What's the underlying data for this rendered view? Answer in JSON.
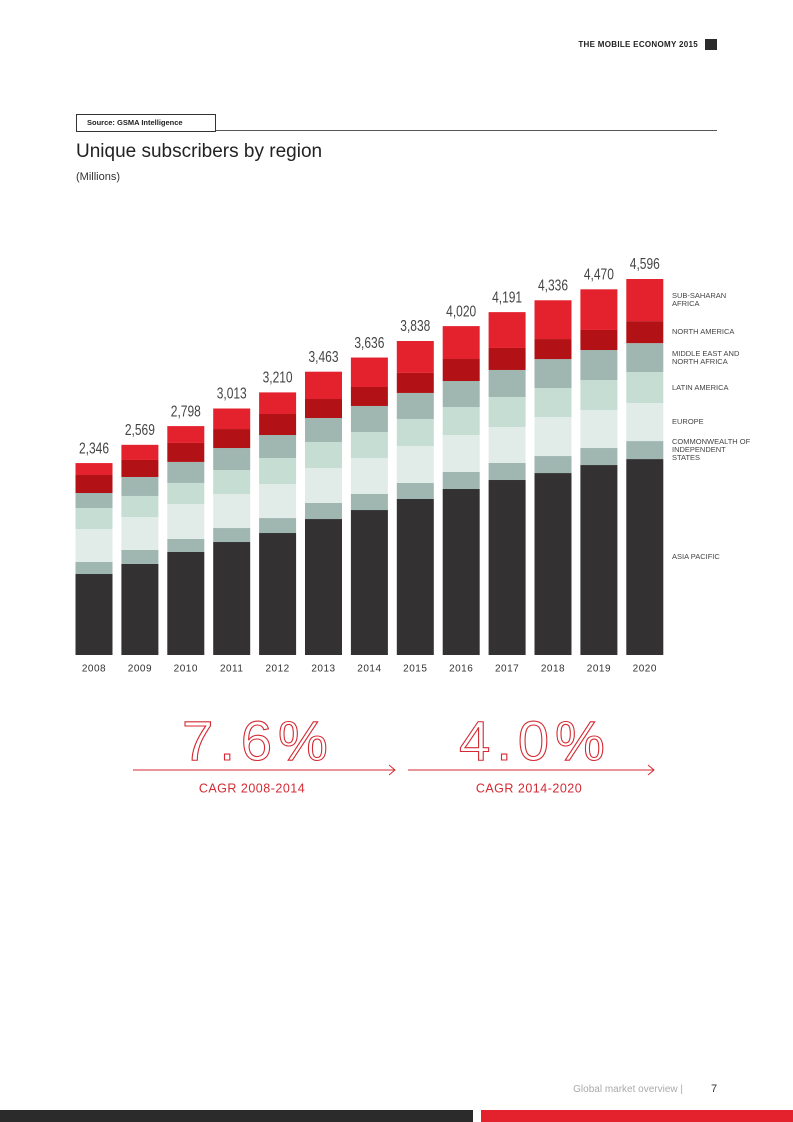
{
  "header": {
    "title": "THE MOBILE ECONOMY 2015"
  },
  "source": "Source: GSMA Intelligence",
  "chart_data": {
    "type": "bar",
    "stacked": true,
    "title": "Unique subscribers by region",
    "subtitle": "(Millions)",
    "categories": [
      "2008",
      "2009",
      "2010",
      "2011",
      "2012",
      "2013",
      "2014",
      "2015",
      "2016",
      "2017",
      "2018",
      "2019",
      "2020"
    ],
    "series": [
      {
        "name": "ASIA PACIFIC",
        "color": "#333132",
        "values": [
          990,
          1113,
          1259,
          1381,
          1491,
          1662,
          1772,
          1907,
          2029,
          2139,
          2224,
          2322,
          2395
        ]
      },
      {
        "name": "COMMONWEALTH OF INDEPENDENT STATES",
        "color": "#9fb6b1",
        "values": [
          147,
          171,
          159,
          171,
          183,
          196,
          196,
          196,
          208,
          208,
          208,
          208,
          220
        ]
      },
      {
        "name": "EUROPE",
        "color": "#e1ece8",
        "values": [
          403,
          403,
          428,
          416,
          416,
          428,
          440,
          452,
          452,
          440,
          477,
          464,
          464
        ]
      },
      {
        "name": "LATIN AMERICA",
        "color": "#c6ddd3",
        "values": [
          257,
          257,
          257,
          293,
          318,
          318,
          318,
          330,
          342,
          367,
          354,
          367,
          379
        ]
      },
      {
        "name": "MIDDLE EAST AND NORTH AFRICA",
        "color": "#9fb6b1",
        "values": [
          183,
          232,
          257,
          269,
          281,
          293,
          318,
          318,
          318,
          330,
          354,
          367,
          354
        ]
      },
      {
        "name": "NORTH AMERICA",
        "color": "#b21116",
        "values": [
          220,
          208,
          232,
          232,
          257,
          232,
          232,
          245,
          269,
          269,
          245,
          245,
          269
        ]
      },
      {
        "name": "SUB-SAHARAN AFRICA",
        "color": "#e3222e",
        "values": [
          146,
          185,
          206,
          251,
          264,
          334,
          360,
          390,
          402,
          438,
          474,
          497,
          515
        ]
      }
    ],
    "totals": [
      2346,
      2569,
      2798,
      3013,
      3210,
      3463,
      3636,
      3838,
      4020,
      4191,
      4336,
      4470,
      4596
    ],
    "total_labels": [
      "2,346",
      "2,569",
      "2,798",
      "3,013",
      "3,210",
      "3,463",
      "3,636",
      "3,838",
      "4,020",
      "4,191",
      "4,336",
      "4,470",
      "4,596"
    ]
  },
  "cagr": [
    {
      "value": "7.6%",
      "label": "CAGR 2008-2014"
    },
    {
      "value": "4.0%",
      "label": "CAGR 2014-2020"
    }
  ],
  "footer": {
    "section": "Global market overview |",
    "page": "7"
  }
}
